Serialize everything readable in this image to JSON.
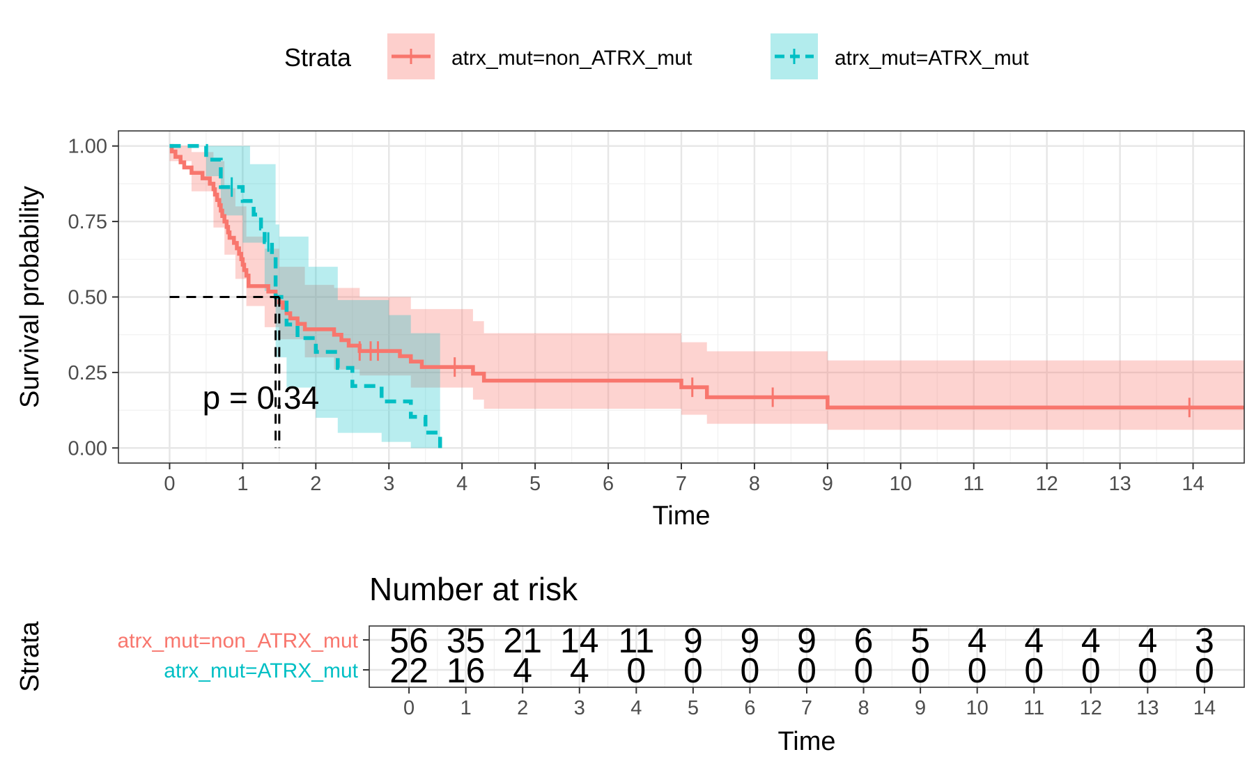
{
  "chart_data": [
    {
      "type": "line",
      "subtype": "kaplan-meier",
      "xlabel": "Time",
      "ylabel": "Survival probability",
      "xlim": [
        -0.7,
        14.7
      ],
      "ylim": [
        -0.05,
        1.05
      ],
      "x_ticks": [
        "0",
        "1",
        "2",
        "3",
        "4",
        "5",
        "6",
        "7",
        "8",
        "9",
        "10",
        "11",
        "12",
        "13",
        "14"
      ],
      "y_ticks": [
        "0.00",
        "0.25",
        "0.50",
        "0.75",
        "1.00"
      ],
      "grid": true,
      "legend": {
        "title": "Strata",
        "position": "top",
        "entries": [
          "atrx_mut=non_ATRX_mut",
          "atrx_mut=ATRX_mut"
        ]
      },
      "annotation": "p = 0.34",
      "median_survival_line": {
        "y": 0.5,
        "x_values": [
          1.45,
          1.5
        ]
      },
      "series": [
        {
          "name": "atrx_mut=non_ATRX_mut",
          "color": "#F8766D",
          "line_style": "solid",
          "steps": [
            [
              0,
              1.0
            ],
            [
              0.03,
              0.982
            ],
            [
              0.08,
              0.964
            ],
            [
              0.15,
              0.946
            ],
            [
              0.2,
              0.929
            ],
            [
              0.3,
              0.911
            ],
            [
              0.45,
              0.893
            ],
            [
              0.55,
              0.875
            ],
            [
              0.6,
              0.857
            ],
            [
              0.62,
              0.839
            ],
            [
              0.65,
              0.821
            ],
            [
              0.68,
              0.804
            ],
            [
              0.7,
              0.786
            ],
            [
              0.72,
              0.768
            ],
            [
              0.75,
              0.75
            ],
            [
              0.78,
              0.732
            ],
            [
              0.8,
              0.714
            ],
            [
              0.82,
              0.696
            ],
            [
              0.88,
              0.679
            ],
            [
              0.92,
              0.661
            ],
            [
              0.95,
              0.643
            ],
            [
              0.98,
              0.625
            ],
            [
              1.0,
              0.607
            ],
            [
              1.02,
              0.589
            ],
            [
              1.05,
              0.571
            ],
            [
              1.08,
              0.536
            ],
            [
              1.35,
              0.518
            ],
            [
              1.45,
              0.5
            ],
            [
              1.5,
              0.482
            ],
            [
              1.55,
              0.464
            ],
            [
              1.6,
              0.446
            ],
            [
              1.65,
              0.429
            ],
            [
              1.75,
              0.411
            ],
            [
              1.85,
              0.393
            ],
            [
              2.25,
              0.375
            ],
            [
              2.35,
              0.357
            ],
            [
              2.45,
              0.339
            ],
            [
              2.6,
              0.321
            ],
            [
              3.15,
              0.304
            ],
            [
              3.3,
              0.286
            ],
            [
              3.45,
              0.268
            ],
            [
              4.15,
              0.246
            ],
            [
              4.3,
              0.223
            ],
            [
              7.0,
              0.201
            ],
            [
              7.35,
              0.168
            ],
            [
              9.0,
              0.134
            ],
            [
              14.7,
              0.134
            ]
          ],
          "censor_x": [
            2.6,
            2.75,
            2.85,
            3.9,
            7.15,
            8.25,
            13.95
          ],
          "ci_upper": [
            [
              0,
              1.0
            ],
            [
              0.3,
              0.98
            ],
            [
              0.6,
              0.95
            ],
            [
              0.75,
              0.86
            ],
            [
              0.9,
              0.8
            ],
            [
              1.05,
              0.7
            ],
            [
              1.3,
              0.66
            ],
            [
              1.5,
              0.6
            ],
            [
              1.85,
              0.54
            ],
            [
              2.25,
              0.53
            ],
            [
              2.6,
              0.5
            ],
            [
              3.3,
              0.46
            ],
            [
              4.15,
              0.42
            ],
            [
              4.3,
              0.38
            ],
            [
              7.0,
              0.35
            ],
            [
              7.35,
              0.32
            ],
            [
              9.0,
              0.29
            ],
            [
              14.7,
              0.29
            ]
          ],
          "ci_lower": [
            [
              0,
              0.95
            ],
            [
              0.3,
              0.85
            ],
            [
              0.6,
              0.73
            ],
            [
              0.75,
              0.64
            ],
            [
              0.9,
              0.56
            ],
            [
              1.05,
              0.47
            ],
            [
              1.3,
              0.4
            ],
            [
              1.5,
              0.36
            ],
            [
              1.85,
              0.3
            ],
            [
              2.25,
              0.26
            ],
            [
              2.6,
              0.24
            ],
            [
              3.3,
              0.2
            ],
            [
              4.15,
              0.16
            ],
            [
              4.3,
              0.13
            ],
            [
              7.0,
              0.11
            ],
            [
              7.35,
              0.08
            ],
            [
              9.0,
              0.06
            ],
            [
              14.7,
              0.06
            ]
          ]
        },
        {
          "name": "atrx_mut=ATRX_mut",
          "color": "#00BFC4",
          "line_style": "dashed",
          "steps": [
            [
              0,
              1.0
            ],
            [
              0.5,
              0.955
            ],
            [
              0.7,
              0.864
            ],
            [
              1.0,
              0.818
            ],
            [
              1.15,
              0.773
            ],
            [
              1.25,
              0.727
            ],
            [
              1.3,
              0.682
            ],
            [
              1.4,
              0.636
            ],
            [
              1.45,
              0.5
            ],
            [
              1.6,
              0.409
            ],
            [
              1.75,
              0.364
            ],
            [
              2.0,
              0.318
            ],
            [
              2.3,
              0.265
            ],
            [
              2.5,
              0.205
            ],
            [
              2.9,
              0.154
            ],
            [
              3.3,
              0.103
            ],
            [
              3.5,
              0.051
            ],
            [
              3.7,
              0.0
            ]
          ],
          "censor_x": [
            0.85,
            1.35
          ],
          "ci_upper": [
            [
              0,
              1.0
            ],
            [
              1.0,
              1.0
            ],
            [
              1.1,
              0.94
            ],
            [
              1.45,
              0.74
            ],
            [
              1.5,
              0.7
            ],
            [
              1.9,
              0.6
            ],
            [
              2.3,
              0.49
            ],
            [
              3.0,
              0.44
            ],
            [
              3.3,
              0.38
            ],
            [
              3.7,
              0.38
            ]
          ],
          "ci_lower": [
            [
              0,
              1.0
            ],
            [
              0.5,
              0.9
            ],
            [
              0.7,
              0.77
            ],
            [
              1.0,
              0.68
            ],
            [
              1.3,
              0.52
            ],
            [
              1.45,
              0.3
            ],
            [
              1.6,
              0.2
            ],
            [
              2.0,
              0.1
            ],
            [
              2.3,
              0.05
            ],
            [
              2.9,
              0.02
            ],
            [
              3.3,
              0.0
            ],
            [
              3.7,
              0.0
            ]
          ]
        }
      ]
    },
    {
      "type": "table",
      "title": "Number at risk",
      "xlabel": "Time",
      "ylabel": "Strata",
      "x_ticks": [
        "0",
        "1",
        "2",
        "3",
        "4",
        "5",
        "6",
        "7",
        "8",
        "9",
        "10",
        "11",
        "12",
        "13",
        "14"
      ],
      "rows": [
        {
          "name": "atrx_mut=non_ATRX_mut",
          "color": "#F8766D",
          "values": [
            56,
            35,
            21,
            14,
            11,
            9,
            9,
            9,
            6,
            5,
            4,
            4,
            4,
            4,
            3
          ]
        },
        {
          "name": "atrx_mut=ATRX_mut",
          "color": "#00BFC4",
          "values": [
            22,
            16,
            4,
            4,
            0,
            0,
            0,
            0,
            0,
            0,
            0,
            0,
            0,
            0,
            0
          ]
        }
      ]
    }
  ]
}
